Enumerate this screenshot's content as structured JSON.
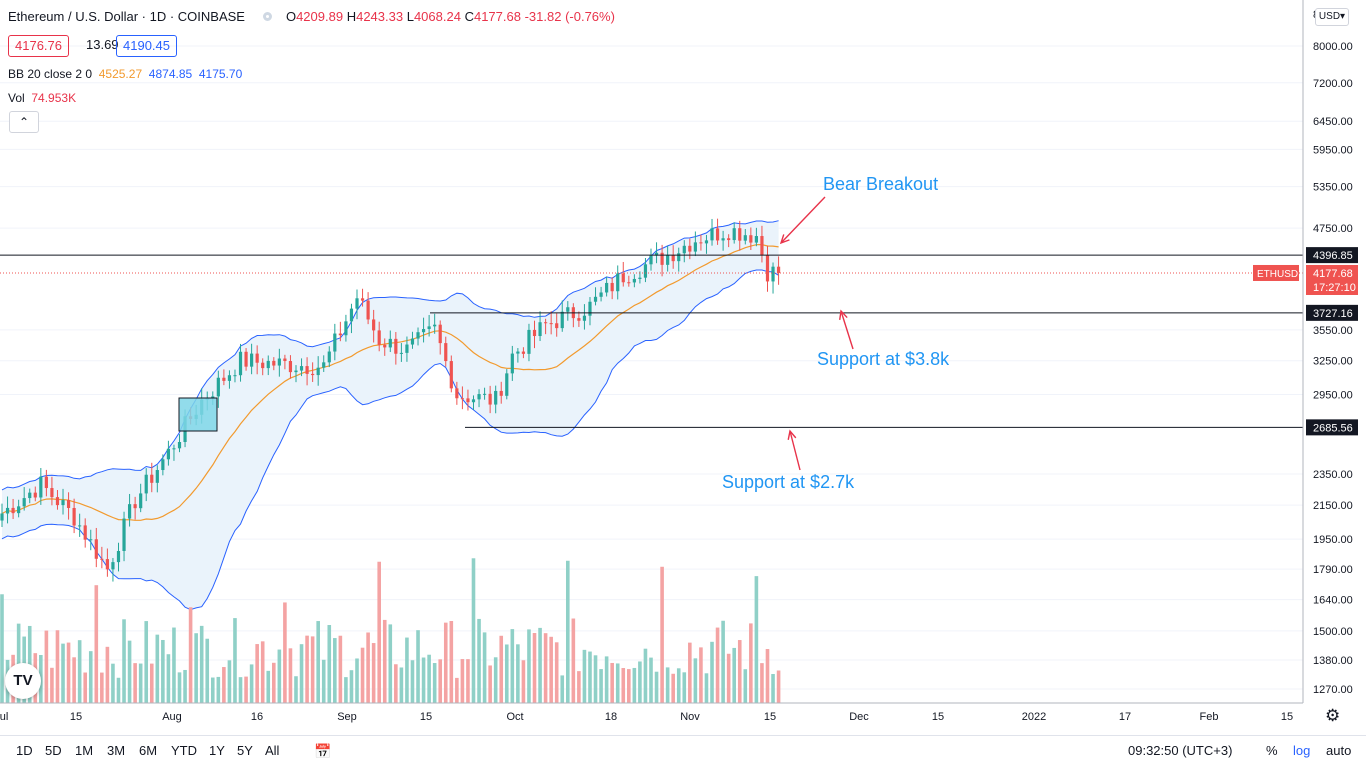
{
  "header": {
    "symbol": "Ethereum / U.S. Dollar · 1D · COINBASE",
    "ohlc": {
      "o_label": "O",
      "o": "4209.89",
      "h_label": "H",
      "h": "4243.33",
      "l_label": "L",
      "l": "4068.24",
      "c_label": "C",
      "c": "4177.68",
      "change": "-31.82 (-0.76%)"
    },
    "bid": "4176.76",
    "spread": "13.69",
    "ask": "4190.45",
    "bb_label": "BB 20 close 2 0",
    "bb_basis": "4525.27",
    "bb_upper": "4874.85",
    "bb_lower": "4175.70",
    "vol_label": "Vol",
    "vol_value": "74.953K",
    "collapse_icon": "chevron-up-icon"
  },
  "price_axis": {
    "currency": "USD",
    "ticks": [
      "8000.00",
      "7200.00",
      "6450.00",
      "5950.00",
      "5350.00",
      "4750.00",
      "3550.00",
      "3250.00",
      "2950.00",
      "2350.00",
      "2150.00",
      "1950.00",
      "1790.00",
      "1640.00",
      "1500.00",
      "1380.00",
      "1270.00"
    ],
    "top_clip": "8",
    "current_label": "ETHUSD",
    "current_price": "4177.68",
    "countdown": "17:27:10",
    "level_4396": "4396.85",
    "level_3727": "3727.16",
    "level_2685": "2685.56"
  },
  "time_axis": {
    "ticks": [
      "ul",
      "15",
      "Aug",
      "16",
      "Sep",
      "15",
      "Oct",
      "18",
      "Nov",
      "15",
      "Dec",
      "15",
      "2022",
      "17",
      "Feb",
      "15"
    ]
  },
  "annotations": {
    "bear": "Bear Breakout",
    "support1": "Support at $3.8k",
    "support2": "Support at $2.7k"
  },
  "bottom": {
    "timeframes": [
      "1D",
      "5D",
      "1M",
      "3M",
      "6M",
      "YTD",
      "1Y",
      "5Y",
      "All"
    ],
    "time": "09:32:50 (UTC+3)",
    "percent": "%",
    "log": "log",
    "auto": "auto",
    "calendar_icon": "calendar-range-icon",
    "gear_icon": "gear-icon"
  },
  "colors": {
    "up": "#26a69a",
    "down": "#ef5350",
    "up_vol": "#8fd0c7",
    "down_vol": "#f4a3a3",
    "bb_band": "#2962ff",
    "bb_basis": "#f29a2e",
    "bb_fill": "#eaf3fb",
    "annotation_text": "#2196f3",
    "annotation_arrow": "#e8334a",
    "highlight_box": "#7fd6e8"
  },
  "chart_data": {
    "type": "candlestick",
    "title": "Ethereum / U.S. Dollar · 1D · COINBASE",
    "y_scale": "log",
    "ylim": [
      1200,
      8600
    ],
    "x_range": [
      "2021-07-01",
      "2022-02-20"
    ],
    "horizontal_levels": [
      4396.85,
      3727.16,
      2685.56
    ],
    "keypoints": [
      {
        "date": "2021-07-01",
        "c": 2100
      },
      {
        "date": "2021-07-08",
        "c": 2280
      },
      {
        "date": "2021-07-14",
        "c": 2080
      },
      {
        "date": "2021-07-20",
        "c": 1790
      },
      {
        "date": "2021-07-25",
        "c": 2180
      },
      {
        "date": "2021-07-31",
        "c": 2500
      },
      {
        "date": "2021-08-06",
        "c": 2900
      },
      {
        "date": "2021-08-13",
        "c": 3250
      },
      {
        "date": "2021-08-20",
        "c": 3220
      },
      {
        "date": "2021-08-28",
        "c": 3200
      },
      {
        "date": "2021-09-03",
        "c": 3900
      },
      {
        "date": "2021-09-07",
        "c": 3450
      },
      {
        "date": "2021-09-12",
        "c": 3350
      },
      {
        "date": "2021-09-17",
        "c": 3550
      },
      {
        "date": "2021-09-21",
        "c": 2950
      },
      {
        "date": "2021-09-28",
        "c": 2900
      },
      {
        "date": "2021-10-01",
        "c": 3300
      },
      {
        "date": "2021-10-07",
        "c": 3600
      },
      {
        "date": "2021-10-15",
        "c": 3800
      },
      {
        "date": "2021-10-21",
        "c": 4150
      },
      {
        "date": "2021-10-29",
        "c": 4400
      },
      {
        "date": "2021-11-03",
        "c": 4600
      },
      {
        "date": "2021-11-09",
        "c": 4730
      },
      {
        "date": "2021-11-14",
        "c": 4650
      },
      {
        "date": "2021-11-16",
        "c": 4200
      },
      {
        "date": "2021-11-18",
        "c": 4177.68
      }
    ]
  }
}
